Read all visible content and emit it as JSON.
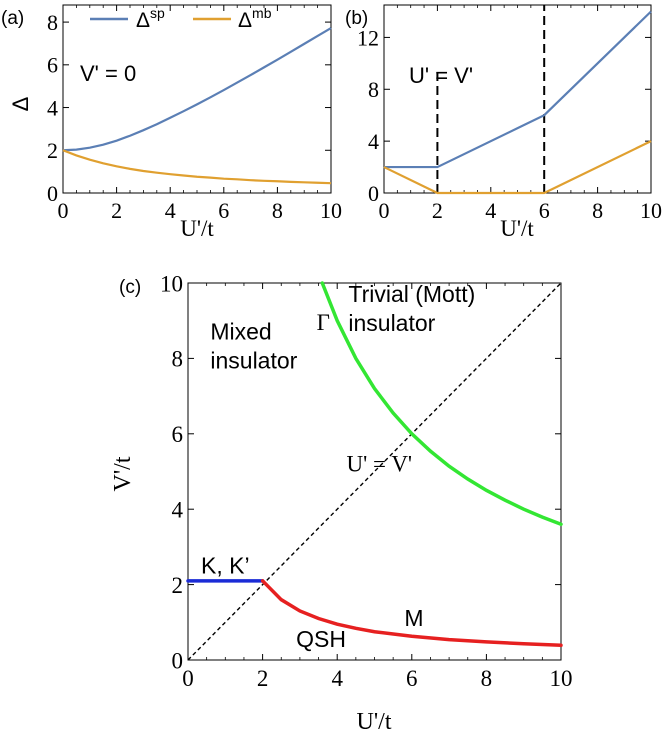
{
  "chart_data": [
    {
      "type": "line",
      "panel_label": "(a)",
      "xlabel": "U'/t",
      "ylabel": "Δ",
      "xlim": [
        0,
        10
      ],
      "ylim": [
        0,
        8.8
      ],
      "xticks": [
        0,
        2,
        4,
        6,
        8,
        10
      ],
      "yticks": [
        0,
        2,
        4,
        6,
        8
      ],
      "annotation": "V' = 0",
      "legend": {
        "placement": "top",
        "entries": [
          {
            "base": "Δ",
            "sup": "sp",
            "color": "#5b7fb5"
          },
          {
            "base": "Δ",
            "sup": "mb",
            "color": "#e0a030"
          }
        ]
      },
      "series": [
        {
          "name": "Δsp",
          "color": "#5b7fb5",
          "x": [
            0,
            0.5,
            1,
            1.5,
            2,
            2.5,
            3,
            3.5,
            4,
            4.5,
            5,
            5.5,
            6,
            6.5,
            7,
            7.5,
            8,
            8.5,
            9,
            9.5,
            10
          ],
          "y": [
            2.0,
            2.03,
            2.12,
            2.26,
            2.45,
            2.68,
            2.94,
            3.22,
            3.52,
            3.83,
            4.15,
            4.48,
            4.82,
            5.17,
            5.52,
            5.88,
            6.24,
            6.61,
            6.98,
            7.35,
            7.72
          ]
        },
        {
          "name": "Δmb",
          "color": "#e0a030",
          "x": [
            0,
            0.5,
            1,
            1.5,
            2,
            2.5,
            3,
            3.5,
            4,
            4.5,
            5,
            5.5,
            6,
            6.5,
            7,
            7.5,
            8,
            8.5,
            9,
            9.5,
            10
          ],
          "y": [
            2.0,
            1.76,
            1.56,
            1.39,
            1.25,
            1.13,
            1.03,
            0.95,
            0.88,
            0.82,
            0.76,
            0.72,
            0.67,
            0.64,
            0.6,
            0.57,
            0.55,
            0.52,
            0.5,
            0.48,
            0.46
          ]
        }
      ]
    },
    {
      "type": "line",
      "panel_label": "(b)",
      "xlabel": "U'/t",
      "ylabel": "",
      "xlim": [
        0,
        10
      ],
      "ylim": [
        0,
        14.5
      ],
      "xticks": [
        0,
        2,
        4,
        6,
        8,
        10
      ],
      "yticks": [
        0,
        4,
        8,
        12
      ],
      "annotation": "U' = V'",
      "vlines": [
        2,
        6
      ],
      "series": [
        {
          "name": "Δsp",
          "color": "#5b7fb5",
          "x": [
            0,
            2,
            6,
            10
          ],
          "y": [
            2,
            2,
            6,
            14
          ]
        },
        {
          "name": "Δmb",
          "color": "#e0a030",
          "x": [
            0,
            2,
            6,
            10
          ],
          "y": [
            2,
            0,
            0,
            4
          ]
        }
      ]
    },
    {
      "type": "line",
      "panel_label": "(c)",
      "xlabel": "U'/t",
      "ylabel": "V'/t",
      "xlim": [
        0,
        10
      ],
      "ylim": [
        0,
        10
      ],
      "xticks": [
        0,
        2,
        4,
        6,
        8,
        10
      ],
      "yticks": [
        0,
        2,
        4,
        6,
        8,
        10
      ],
      "diagonal_label": "U' = V'",
      "regions": [
        {
          "lines": [
            "Mixed",
            "insulator"
          ],
          "x": 0.6,
          "y": 8.5
        },
        {
          "lines": [
            "Trivial (Mott)",
            "insulator"
          ],
          "x": 4.3,
          "y": 9.5
        },
        {
          "lines": [
            "QSH"
          ],
          "x": 2.9,
          "y": 0.35
        }
      ],
      "curve_labels": [
        {
          "text": "Γ",
          "x": 3.45,
          "y": 8.75
        },
        {
          "text": "K, K’",
          "x": 0.35,
          "y": 2.3
        },
        {
          "text": "M",
          "x": 5.8,
          "y": 0.9
        }
      ],
      "series": [
        {
          "name": "Γ",
          "color": "#33e633",
          "x": [
            3.6,
            4,
            4.5,
            5,
            5.5,
            6,
            6.5,
            7,
            7.5,
            8,
            8.5,
            9,
            9.5,
            10
          ],
          "y": [
            10,
            9.0,
            8.0,
            7.2,
            6.55,
            6.0,
            5.54,
            5.14,
            4.8,
            4.5,
            4.24,
            4.0,
            3.79,
            3.6
          ]
        },
        {
          "name": "K, K’",
          "color": "#1a2bd6",
          "x": [
            0,
            2
          ],
          "y": [
            2.1,
            2.1
          ]
        },
        {
          "name": "M",
          "color": "#e62020",
          "x": [
            2,
            2.5,
            3,
            3.5,
            4,
            4.5,
            5,
            6,
            7,
            8,
            9,
            10
          ],
          "y": [
            2.1,
            1.6,
            1.3,
            1.1,
            0.95,
            0.84,
            0.75,
            0.63,
            0.54,
            0.48,
            0.43,
            0.39
          ]
        }
      ]
    }
  ]
}
